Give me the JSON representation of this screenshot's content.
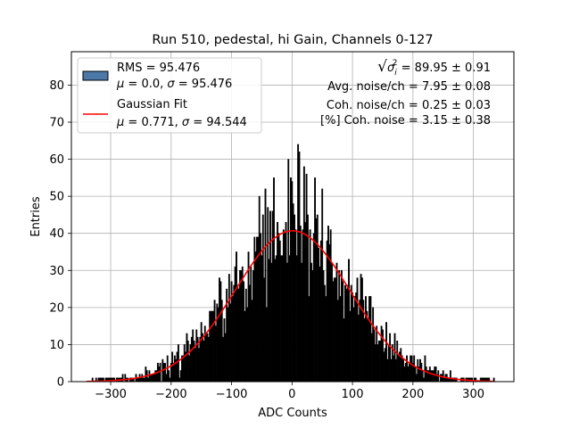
{
  "chart_data": {
    "type": "histogram",
    "title": "Run 510, pedestal, hi Gain, Channels 0-127",
    "xlabel": "ADC Counts",
    "ylabel": "Entries",
    "xlim": [
      -365,
      367
    ],
    "ylim": [
      0,
      89
    ],
    "xticks": [
      -300,
      -200,
      -100,
      0,
      100,
      200,
      300
    ],
    "xtick_labels": [
      "−300",
      "−200",
      "−100",
      "0",
      "100",
      "200",
      "300"
    ],
    "yticks": [
      0,
      10,
      20,
      30,
      40,
      50,
      60,
      70,
      80
    ],
    "ytick_labels": [
      "0",
      "10",
      "20",
      "30",
      "40",
      "50",
      "60",
      "70",
      "80"
    ],
    "grid": true,
    "legend_position": "top-left",
    "bins": {
      "start": -340,
      "end": 334,
      "width": 2
    },
    "histogram": {
      "name": "RMS = 95.476",
      "label_line2": {
        "pre": "μ",
        "mid": " = 0.0, ",
        "sig": "σ",
        "post": " = 95.476"
      },
      "fill": "#000000",
      "edge": "#000000",
      "legend_fill": "#4c78a8",
      "approx_gaussian": {
        "mean": 0.0,
        "sigma": 95.476,
        "peak": 41
      },
      "notable_bins": [
        {
          "x": 10,
          "y": 64
        },
        {
          "x": 12,
          "y": 62
        },
        {
          "x": 20,
          "y": 58
        },
        {
          "x": -6,
          "y": 60
        },
        {
          "x": -2,
          "y": 55
        },
        {
          "x": 24,
          "y": 56
        },
        {
          "x": -30,
          "y": 55
        },
        {
          "x": -44,
          "y": 52
        },
        {
          "x": 38,
          "y": 55
        },
        {
          "x": 50,
          "y": 52
        },
        {
          "x": -54,
          "y": 50
        }
      ]
    },
    "fit": {
      "name": "Gaussian Fit",
      "label_line2": {
        "pre": "μ",
        "mid": " = 0.771, ",
        "sig": "σ",
        "post": " = 94.544"
      },
      "mean": 0.771,
      "sigma": 94.544,
      "amplitude": 40.7,
      "color": "#ff0000"
    },
    "annotations": [
      {
        "prefix": "√",
        "base": "σ",
        "sub": "i",
        "sup": "2",
        "text": " = 89.95 ± 0.91"
      },
      {
        "text": "Avg. noise/ch = 7.95 ± 0.08"
      },
      {
        "text": "Coh. noise/ch = 0.25 ± 0.03"
      },
      {
        "text": "[%] Coh. noise = 3.15 ± 0.38"
      }
    ]
  }
}
